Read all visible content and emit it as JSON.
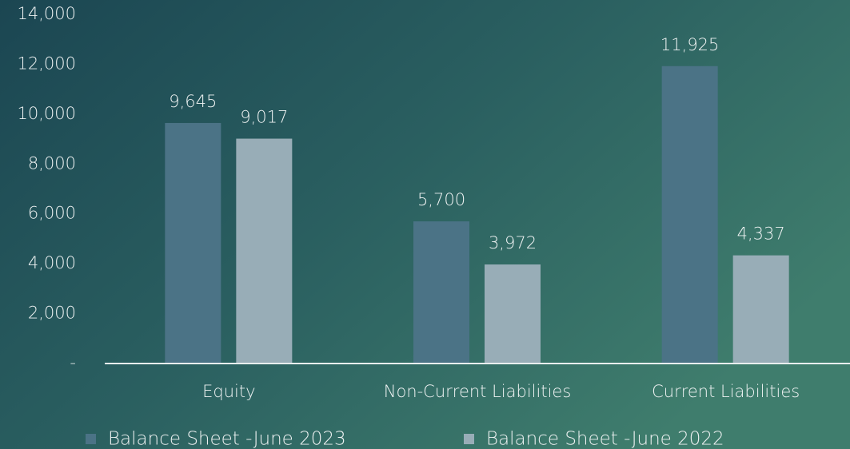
{
  "chart_data": {
    "type": "bar",
    "categories": [
      "Equity",
      "Non-Current Liabilities",
      "Current Liabilities"
    ],
    "series": [
      {
        "name": "Balance Sheet -June 2023",
        "color": "#4b7386",
        "values": [
          9645,
          5700,
          11925
        ],
        "value_labels": [
          "9,645",
          "5,700",
          "11,925"
        ]
      },
      {
        "name": "Balance Sheet -June 2022",
        "color": "#98adb7",
        "values": [
          9017,
          3972,
          4337
        ],
        "value_labels": [
          "9,017",
          "3,972",
          "4,337"
        ]
      }
    ],
    "ylim": [
      0,
      14000
    ],
    "yticks": [
      {
        "value": 0,
        "label": "-"
      },
      {
        "value": 2000,
        "label": "2,000"
      },
      {
        "value": 4000,
        "label": "4,000"
      },
      {
        "value": 6000,
        "label": "6,000"
      },
      {
        "value": 8000,
        "label": "8,000"
      },
      {
        "value": 10000,
        "label": "10,000"
      },
      {
        "value": 12000,
        "label": "12,000"
      },
      {
        "value": 14000,
        "label": "14,000"
      }
    ],
    "grid": false,
    "legend": "bottom"
  }
}
